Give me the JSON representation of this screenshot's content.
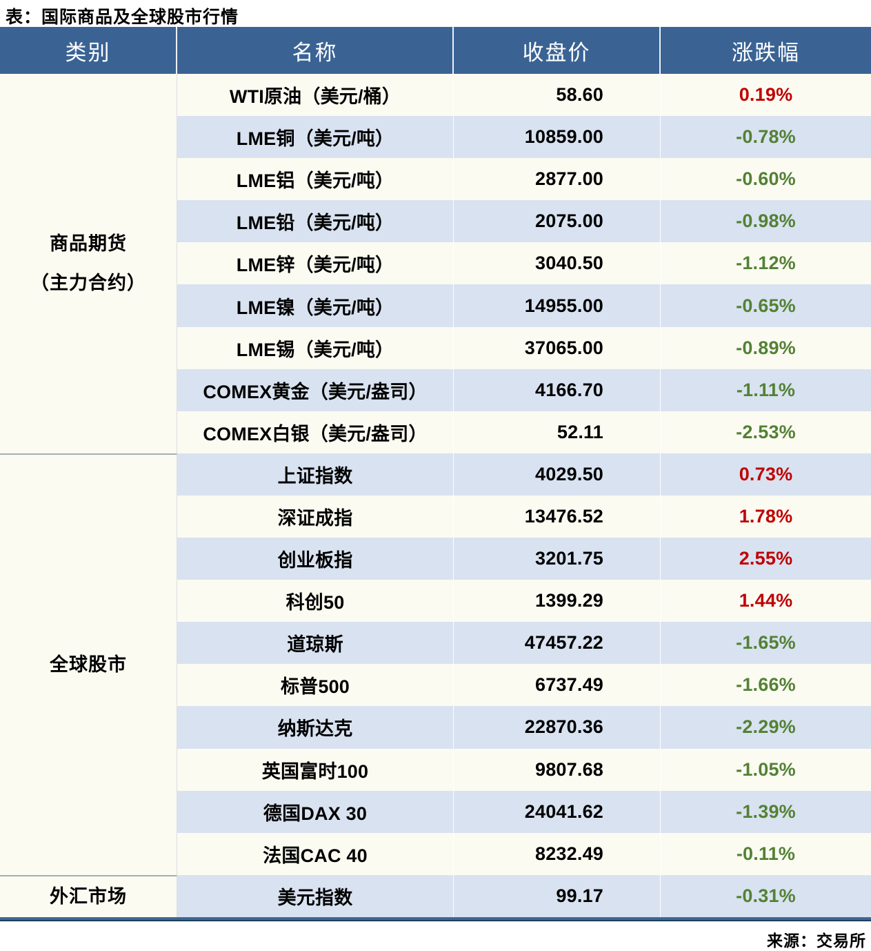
{
  "title": "表：国际商品及全球股市行情",
  "source": "来源：交易所",
  "columns": [
    "类别",
    "名称",
    "收盘价",
    "涨跌幅"
  ],
  "colors": {
    "header_bg": "#3A6394",
    "row_bg": "#FBFBF2",
    "row_alt_bg": "#D9E2F0",
    "up": "#C00000",
    "down": "#538135",
    "bottom_border": "#3C6796"
  },
  "sections": [
    {
      "category_lines": [
        "商品期货",
        "（主力合约）"
      ],
      "rows": [
        {
          "name": "WTI原油（美元/桶）",
          "close": "58.60",
          "change": "0.19%"
        },
        {
          "name": "LME铜（美元/吨）",
          "close": "10859.00",
          "change": "-0.78%"
        },
        {
          "name": "LME铝（美元/吨）",
          "close": "2877.00",
          "change": "-0.60%"
        },
        {
          "name": "LME铅（美元/吨）",
          "close": "2075.00",
          "change": "-0.98%"
        },
        {
          "name": "LME锌（美元/吨）",
          "close": "3040.50",
          "change": "-1.12%"
        },
        {
          "name": "LME镍（美元/吨）",
          "close": "14955.00",
          "change": "-0.65%"
        },
        {
          "name": "LME锡（美元/吨）",
          "close": "37065.00",
          "change": "-0.89%"
        },
        {
          "name": "COMEX黄金（美元/盎司）",
          "close": "4166.70",
          "change": "-1.11%"
        },
        {
          "name": "COMEX白银（美元/盎司）",
          "close": "52.11",
          "change": "-2.53%"
        }
      ]
    },
    {
      "category_lines": [
        "全球股市"
      ],
      "rows": [
        {
          "name": "上证指数",
          "close": "4029.50",
          "change": "0.73%"
        },
        {
          "name": "深证成指",
          "close": "13476.52",
          "change": "1.78%"
        },
        {
          "name": "创业板指",
          "close": "3201.75",
          "change": "2.55%"
        },
        {
          "name": "科创50",
          "close": "1399.29",
          "change": "1.44%"
        },
        {
          "name": "道琼斯",
          "close": "47457.22",
          "change": "-1.65%"
        },
        {
          "name": "标普500",
          "close": "6737.49",
          "change": "-1.66%"
        },
        {
          "name": "纳斯达克",
          "close": "22870.36",
          "change": "-2.29%"
        },
        {
          "name": "英国富时100",
          "close": "9807.68",
          "change": "-1.05%"
        },
        {
          "name": "德国DAX 30",
          "close": "24041.62",
          "change": "-1.39%"
        },
        {
          "name": "法国CAC 40",
          "close": "8232.49",
          "change": "-0.11%"
        }
      ]
    },
    {
      "category_lines": [
        "外汇市场"
      ],
      "rows": [
        {
          "name": "美元指数",
          "close": "99.17",
          "change": "-0.31%"
        }
      ]
    }
  ],
  "chart_data": {
    "type": "table",
    "title": "表：国际商品及全球股市行情",
    "columns": [
      "类别",
      "名称",
      "收盘价",
      "涨跌幅"
    ],
    "rows": [
      [
        "商品期货（主力合约）",
        "WTI原油（美元/桶）",
        58.6,
        "0.19%"
      ],
      [
        "商品期货（主力合约）",
        "LME铜（美元/吨）",
        10859.0,
        "-0.78%"
      ],
      [
        "商品期货（主力合约）",
        "LME铝（美元/吨）",
        2877.0,
        "-0.60%"
      ],
      [
        "商品期货（主力合约）",
        "LME铅（美元/吨）",
        2075.0,
        "-0.98%"
      ],
      [
        "商品期货（主力合约）",
        "LME锌（美元/吨）",
        3040.5,
        "-1.12%"
      ],
      [
        "商品期货（主力合约）",
        "LME镍（美元/吨）",
        14955.0,
        "-0.65%"
      ],
      [
        "商品期货（主力合约）",
        "LME锡（美元/吨）",
        37065.0,
        "-0.89%"
      ],
      [
        "商品期货（主力合约）",
        "COMEX黄金（美元/盎司）",
        4166.7,
        "-1.11%"
      ],
      [
        "商品期货（主力合约）",
        "COMEX白银（美元/盎司）",
        52.11,
        "-2.53%"
      ],
      [
        "全球股市",
        "上证指数",
        4029.5,
        "0.73%"
      ],
      [
        "全球股市",
        "深证成指",
        13476.52,
        "1.78%"
      ],
      [
        "全球股市",
        "创业板指",
        3201.75,
        "2.55%"
      ],
      [
        "全球股市",
        "科创50",
        1399.29,
        "1.44%"
      ],
      [
        "全球股市",
        "道琼斯",
        47457.22,
        "-1.65%"
      ],
      [
        "全球股市",
        "标普500",
        6737.49,
        "-1.66%"
      ],
      [
        "全球股市",
        "纳斯达克",
        22870.36,
        "-2.29%"
      ],
      [
        "全球股市",
        "英国富时100",
        9807.68,
        "-1.05%"
      ],
      [
        "全球股市",
        "德国DAX 30",
        24041.62,
        "-1.39%"
      ],
      [
        "全球股市",
        "法国CAC 40",
        8232.49,
        "-0.11%"
      ],
      [
        "外汇市场",
        "美元指数",
        99.17,
        "-0.31%"
      ]
    ],
    "source": "来源：交易所"
  }
}
